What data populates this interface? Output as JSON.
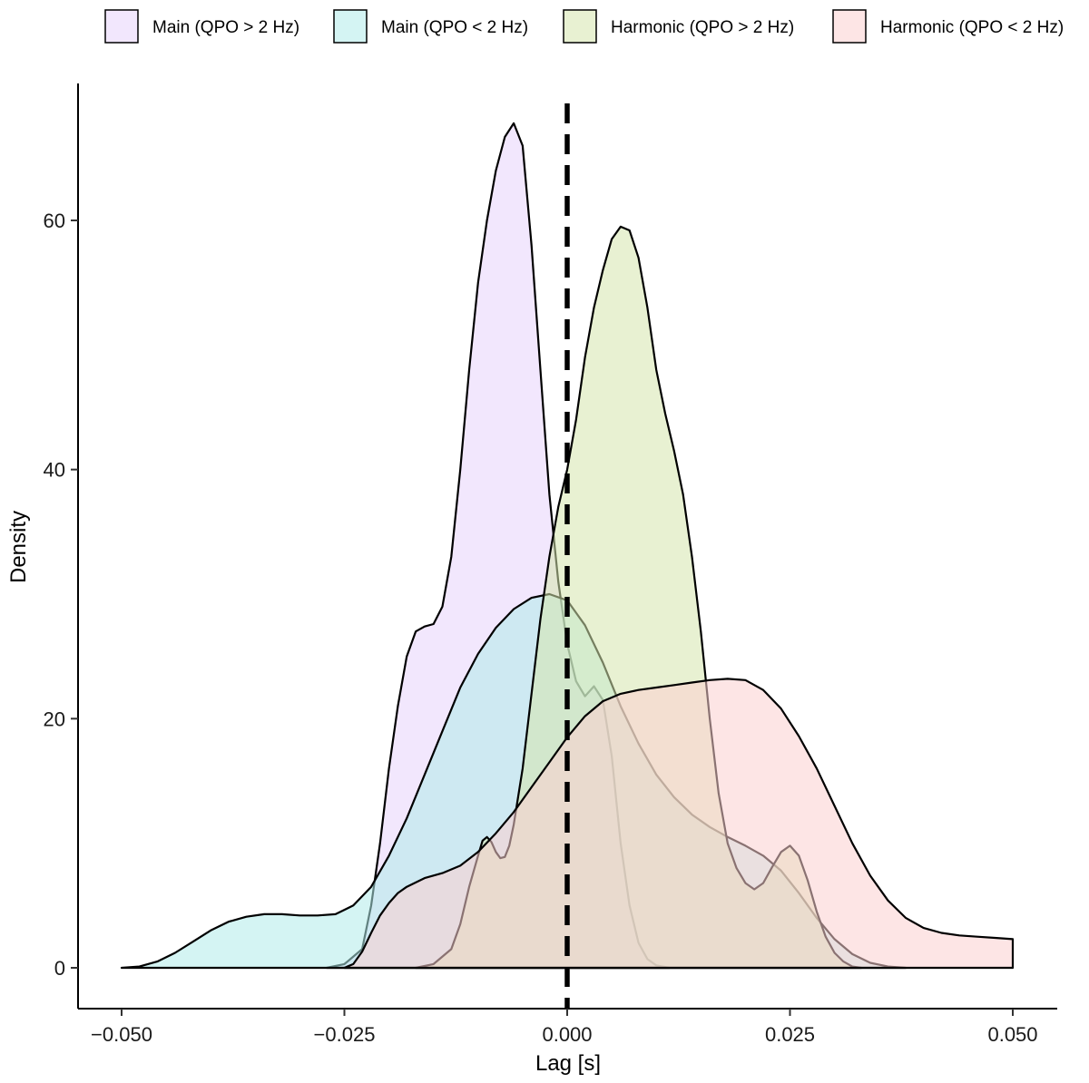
{
  "chart_data": {
    "type": "area",
    "subtype": "density",
    "title": "",
    "xlabel": "Lag [s]",
    "ylabel": "Density",
    "xlim": [
      -0.052,
      0.0505
    ],
    "ylim": [
      -3.3,
      70
    ],
    "x_ticks": [
      -0.05,
      -0.025,
      0.0,
      0.025,
      0.05
    ],
    "x_tick_labels": [
      "−0.050",
      "−0.025",
      "0.000",
      "0.025",
      "0.050"
    ],
    "y_ticks": [
      0,
      20,
      40,
      60
    ],
    "y_tick_labels": [
      "0",
      "20",
      "40",
      "60"
    ],
    "grid": false,
    "legend_position": "top",
    "reference_line": {
      "x": 0.0,
      "style": "dashed",
      "color": "#000000"
    },
    "series": [
      {
        "name": "Main (QPO > 2 Hz)",
        "fill": "#e8d4fb",
        "points": [
          [
            -0.027,
            0
          ],
          [
            -0.025,
            0.3
          ],
          [
            -0.023,
            1.5
          ],
          [
            -0.022,
            5
          ],
          [
            -0.021,
            10
          ],
          [
            -0.02,
            16
          ],
          [
            -0.019,
            21
          ],
          [
            -0.018,
            25
          ],
          [
            -0.017,
            27
          ],
          [
            -0.016,
            27.4
          ],
          [
            -0.015,
            27.6
          ],
          [
            -0.014,
            29
          ],
          [
            -0.013,
            33
          ],
          [
            -0.012,
            40
          ],
          [
            -0.011,
            48
          ],
          [
            -0.01,
            55
          ],
          [
            -0.009,
            60
          ],
          [
            -0.008,
            64
          ],
          [
            -0.007,
            66.7
          ],
          [
            -0.006,
            67.8
          ],
          [
            -0.005,
            66
          ],
          [
            -0.004,
            58
          ],
          [
            -0.003,
            48
          ],
          [
            -0.002,
            38
          ],
          [
            -0.001,
            31
          ],
          [
            0.0,
            26
          ],
          [
            0.001,
            23
          ],
          [
            0.002,
            21.8
          ],
          [
            0.003,
            22.6
          ],
          [
            0.004,
            21.5
          ],
          [
            0.005,
            17
          ],
          [
            0.006,
            10
          ],
          [
            0.007,
            5
          ],
          [
            0.008,
            2
          ],
          [
            0.009,
            0.7
          ],
          [
            0.01,
            0.2
          ],
          [
            0.0115,
            0
          ]
        ]
      },
      {
        "name": "Main (QPO < 2 Hz)",
        "fill": "#b0ebea",
        "points": [
          [
            -0.05,
            0
          ],
          [
            -0.048,
            0.1
          ],
          [
            -0.046,
            0.5
          ],
          [
            -0.044,
            1.2
          ],
          [
            -0.042,
            2.1
          ],
          [
            -0.04,
            3
          ],
          [
            -0.038,
            3.7
          ],
          [
            -0.036,
            4.1
          ],
          [
            -0.034,
            4.3
          ],
          [
            -0.032,
            4.3
          ],
          [
            -0.03,
            4.2
          ],
          [
            -0.028,
            4.2
          ],
          [
            -0.026,
            4.3
          ],
          [
            -0.024,
            5
          ],
          [
            -0.022,
            6.5
          ],
          [
            -0.02,
            9
          ],
          [
            -0.018,
            12
          ],
          [
            -0.016,
            15.5
          ],
          [
            -0.014,
            19
          ],
          [
            -0.012,
            22.5
          ],
          [
            -0.01,
            25.2
          ],
          [
            -0.008,
            27.3
          ],
          [
            -0.006,
            28.8
          ],
          [
            -0.004,
            29.7
          ],
          [
            -0.002,
            30
          ],
          [
            0.0,
            29.5
          ],
          [
            0.002,
            27.5
          ],
          [
            0.004,
            24.5
          ],
          [
            0.006,
            21
          ],
          [
            0.008,
            18
          ],
          [
            0.01,
            15.5
          ],
          [
            0.012,
            13.7
          ],
          [
            0.014,
            12.3
          ],
          [
            0.016,
            11.3
          ],
          [
            0.018,
            10.5
          ],
          [
            0.02,
            9.8
          ],
          [
            0.022,
            9
          ],
          [
            0.024,
            7.8
          ],
          [
            0.026,
            6
          ],
          [
            0.028,
            4
          ],
          [
            0.03,
            2.3
          ],
          [
            0.032,
            1.1
          ],
          [
            0.034,
            0.4
          ],
          [
            0.036,
            0.1
          ],
          [
            0.038,
            0
          ]
        ]
      },
      {
        "name": "Harmonic (QPO > 2 Hz)",
        "fill": "#d6e6ad",
        "points": [
          [
            -0.017,
            0
          ],
          [
            -0.015,
            0.3
          ],
          [
            -0.013,
            1.5
          ],
          [
            -0.012,
            3.5
          ],
          [
            -0.011,
            6.5
          ],
          [
            -0.01,
            9
          ],
          [
            -0.0095,
            10.2
          ],
          [
            -0.009,
            10.5
          ],
          [
            -0.0085,
            10.1
          ],
          [
            -0.008,
            9.3
          ],
          [
            -0.0075,
            8.8
          ],
          [
            -0.007,
            8.9
          ],
          [
            -0.0065,
            9.8
          ],
          [
            -0.006,
            11.5
          ],
          [
            -0.005,
            16
          ],
          [
            -0.004,
            22
          ],
          [
            -0.003,
            28
          ],
          [
            -0.002,
            33
          ],
          [
            -0.001,
            37
          ],
          [
            0.0,
            40
          ],
          [
            0.001,
            44
          ],
          [
            0.002,
            49
          ],
          [
            0.003,
            53
          ],
          [
            0.004,
            56
          ],
          [
            0.005,
            58.5
          ],
          [
            0.006,
            59.5
          ],
          [
            0.007,
            59.2
          ],
          [
            0.008,
            57
          ],
          [
            0.009,
            53
          ],
          [
            0.01,
            48
          ],
          [
            0.011,
            44.5
          ],
          [
            0.012,
            41.5
          ],
          [
            0.013,
            38
          ],
          [
            0.014,
            33
          ],
          [
            0.015,
            27
          ],
          [
            0.016,
            20
          ],
          [
            0.017,
            14
          ],
          [
            0.018,
            10
          ],
          [
            0.019,
            8
          ],
          [
            0.02,
            6.8
          ],
          [
            0.021,
            6.3
          ],
          [
            0.022,
            6.8
          ],
          [
            0.023,
            8.1
          ],
          [
            0.024,
            9.3
          ],
          [
            0.025,
            9.8
          ],
          [
            0.026,
            9
          ],
          [
            0.027,
            7
          ],
          [
            0.028,
            4.5
          ],
          [
            0.029,
            2.5
          ],
          [
            0.03,
            1.2
          ],
          [
            0.031,
            0.5
          ],
          [
            0.032,
            0.1
          ],
          [
            0.033,
            0
          ]
        ]
      },
      {
        "name": "Harmonic (QPO < 2 Hz)",
        "fill": "#fccfcf",
        "points": [
          [
            -0.025,
            0
          ],
          [
            -0.024,
            0.3
          ],
          [
            -0.023,
            1.3
          ],
          [
            -0.022,
            2.8
          ],
          [
            -0.021,
            4.2
          ],
          [
            -0.02,
            5.2
          ],
          [
            -0.019,
            6
          ],
          [
            -0.018,
            6.5
          ],
          [
            -0.016,
            7.2
          ],
          [
            -0.014,
            7.6
          ],
          [
            -0.012,
            8.2
          ],
          [
            -0.01,
            9.3
          ],
          [
            -0.008,
            10.8
          ],
          [
            -0.006,
            12.5
          ],
          [
            -0.004,
            14.5
          ],
          [
            -0.002,
            16.5
          ],
          [
            0.0,
            18.5
          ],
          [
            0.002,
            20.2
          ],
          [
            0.004,
            21.4
          ],
          [
            0.006,
            22
          ],
          [
            0.008,
            22.3
          ],
          [
            0.01,
            22.5
          ],
          [
            0.012,
            22.7
          ],
          [
            0.014,
            22.9
          ],
          [
            0.016,
            23.1
          ],
          [
            0.018,
            23.2
          ],
          [
            0.02,
            23.1
          ],
          [
            0.022,
            22.3
          ],
          [
            0.024,
            20.8
          ],
          [
            0.026,
            18.6
          ],
          [
            0.028,
            16
          ],
          [
            0.03,
            13
          ],
          [
            0.032,
            10
          ],
          [
            0.034,
            7.4
          ],
          [
            0.036,
            5.4
          ],
          [
            0.038,
            4
          ],
          [
            0.04,
            3.2
          ],
          [
            0.042,
            2.8
          ],
          [
            0.044,
            2.6
          ],
          [
            0.046,
            2.5
          ],
          [
            0.048,
            2.4
          ],
          [
            0.05,
            2.3
          ]
        ]
      }
    ]
  }
}
